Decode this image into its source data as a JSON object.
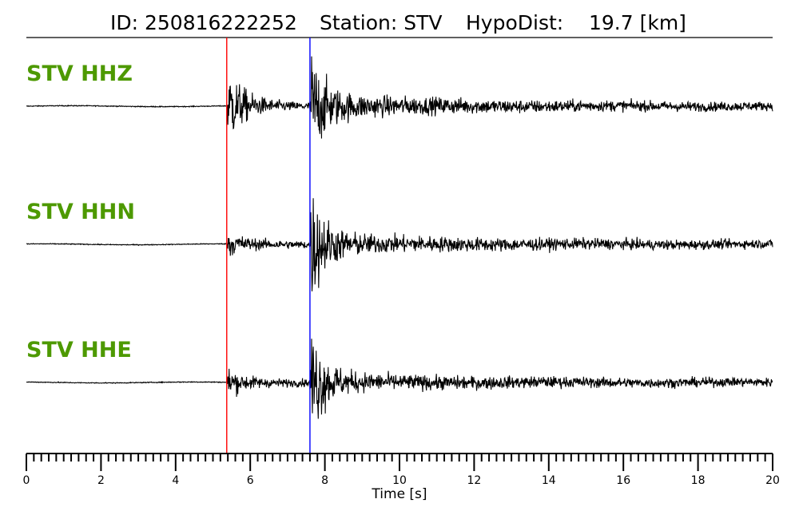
{
  "header": {
    "id_text": "ID: 250816222252",
    "station_text": "Station: STV",
    "dist_text": "HypoDist:    19.7 [km]"
  },
  "chart_data": {
    "type": "line",
    "title": "ID: 250816222252   Station: STV   HypoDist:    19.7 [km]",
    "xlabel": "Time [s]",
    "ylabel": "",
    "xlim": [
      0,
      20
    ],
    "x_major_ticks": [
      0,
      2,
      4,
      6,
      8,
      10,
      12,
      14,
      16,
      18,
      20
    ],
    "x_minor_step": 0.2,
    "grid": false,
    "label_color": "#4d9900",
    "trace_color": "#000000",
    "picks": [
      {
        "phase": "P",
        "time": 5.37,
        "color": "#ff0000"
      },
      {
        "phase": "S",
        "time": 7.6,
        "color": "#0000ff"
      }
    ],
    "series": [
      {
        "name": "STV HHZ",
        "p_amp": 0.7,
        "s_amp": 0.85,
        "coda_amp": 0.18,
        "decay": 0.22
      },
      {
        "name": "STV HHN",
        "p_amp": 0.2,
        "s_amp": 1.0,
        "coda_amp": 0.14,
        "decay": 0.2
      },
      {
        "name": "STV HHE",
        "p_amp": 0.22,
        "s_amp": 0.95,
        "coda_amp": 0.12,
        "decay": 0.2
      }
    ]
  }
}
